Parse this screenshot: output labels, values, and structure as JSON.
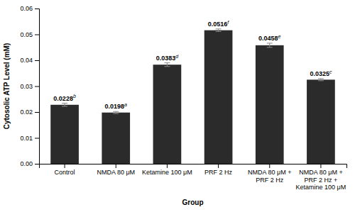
{
  "chart_data": {
    "type": "bar",
    "categories": [
      "Control",
      "NMDA 80 μM",
      "Ketamine 100 μM",
      "PRF 2 Hz",
      "NMDA 80 μM +\nPRF 2 Hz",
      "NMDA 80 μM +\nPRF 2 Hz +\nKetamine 100 μM"
    ],
    "values": [
      0.0228,
      0.0198,
      0.0383,
      0.0516,
      0.0458,
      0.0325
    ],
    "errors": [
      0.0006,
      0.0004,
      0.0007,
      0.0005,
      0.0008,
      0.0004
    ],
    "annotations": [
      "b",
      "a",
      "d",
      "f",
      "e",
      "c"
    ],
    "data_labels": true,
    "color": "#2b2b2b",
    "xlabel": "Group",
    "ylabel": "Cytosolic ATP Level (mM)",
    "ylim": [
      0.0,
      0.06
    ],
    "yticks": [
      {
        "value": 0.0,
        "label": "0.00"
      },
      0.01,
      0.02,
      0.03,
      0.04,
      0.05,
      0.06
    ],
    "grid": false
  }
}
